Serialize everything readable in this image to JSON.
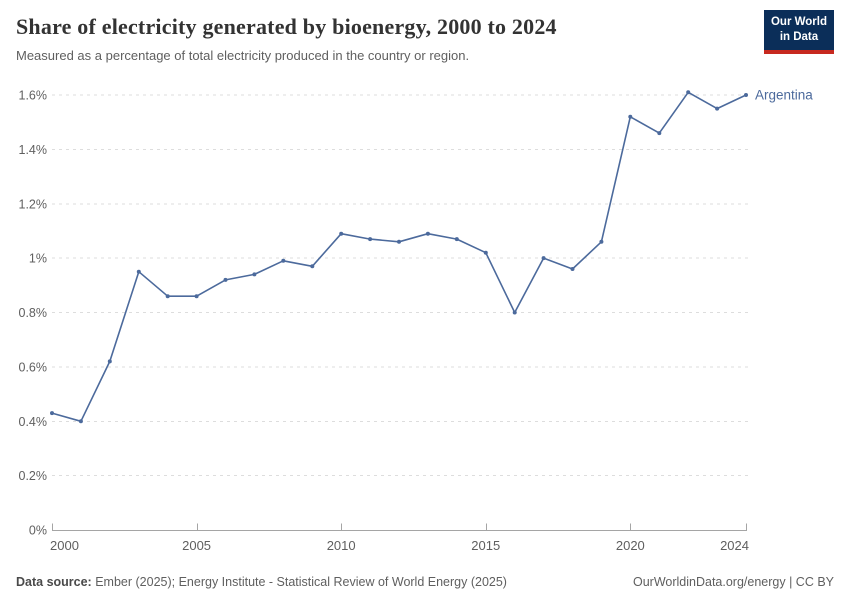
{
  "header": {
    "title": "Share of electricity generated by bioenergy, 2000 to 2024",
    "subtitle": "Measured as a percentage of total electricity produced in the country or region.",
    "logo": {
      "line1": "Our World",
      "line2": "in Data"
    }
  },
  "chart_data": {
    "type": "line",
    "title": "Share of electricity generated by bioenergy, 2000 to 2024",
    "x": [
      2000,
      2001,
      2002,
      2003,
      2004,
      2005,
      2006,
      2007,
      2008,
      2009,
      2010,
      2011,
      2012,
      2013,
      2014,
      2015,
      2016,
      2017,
      2018,
      2019,
      2020,
      2021,
      2022,
      2023,
      2024
    ],
    "series": [
      {
        "name": "Argentina",
        "color": "#4C6A9C",
        "values": [
          0.43,
          0.4,
          0.62,
          0.95,
          0.86,
          0.86,
          0.92,
          0.94,
          0.99,
          0.97,
          1.09,
          1.07,
          1.06,
          1.09,
          1.07,
          1.02,
          0.8,
          1.0,
          0.96,
          1.06,
          1.52,
          1.46,
          1.61,
          1.55,
          1.6
        ]
      }
    ],
    "xlabel": "",
    "ylabel": "",
    "ylim": [
      0,
      1.6
    ],
    "xlim": [
      2000,
      2024
    ],
    "y_ticks": [
      {
        "v": 0,
        "label": "0%"
      },
      {
        "v": 0.2,
        "label": "0.2%"
      },
      {
        "v": 0.4,
        "label": "0.4%"
      },
      {
        "v": 0.6,
        "label": "0.6%"
      },
      {
        "v": 0.8,
        "label": "0.8%"
      },
      {
        "v": 1,
        "label": "1%"
      },
      {
        "v": 1.2,
        "label": "1.2%"
      },
      {
        "v": 1.4,
        "label": "1.4%"
      },
      {
        "v": 1.6,
        "label": "1.6%"
      }
    ],
    "x_ticks": [
      2000,
      2005,
      2010,
      2015,
      2020,
      2024
    ],
    "grid": "horizontal-dashed",
    "legend_position": "end-of-line"
  },
  "footer": {
    "data_source_label": "Data source:",
    "data_source": "Ember (2025); Energy Institute - Statistical Review of World Energy (2025)",
    "rights": "OurWorldinData.org/energy | CC BY"
  },
  "colors": {
    "line": "#4C6A9C",
    "grid": "#dddddd",
    "axis": "#a5a5a5",
    "tick_text": "#5f5f5f",
    "title": "#333333",
    "subtitle": "#5f5f5f",
    "logo_bg": "#0b2e59",
    "logo_stripe": "#c7291f"
  }
}
